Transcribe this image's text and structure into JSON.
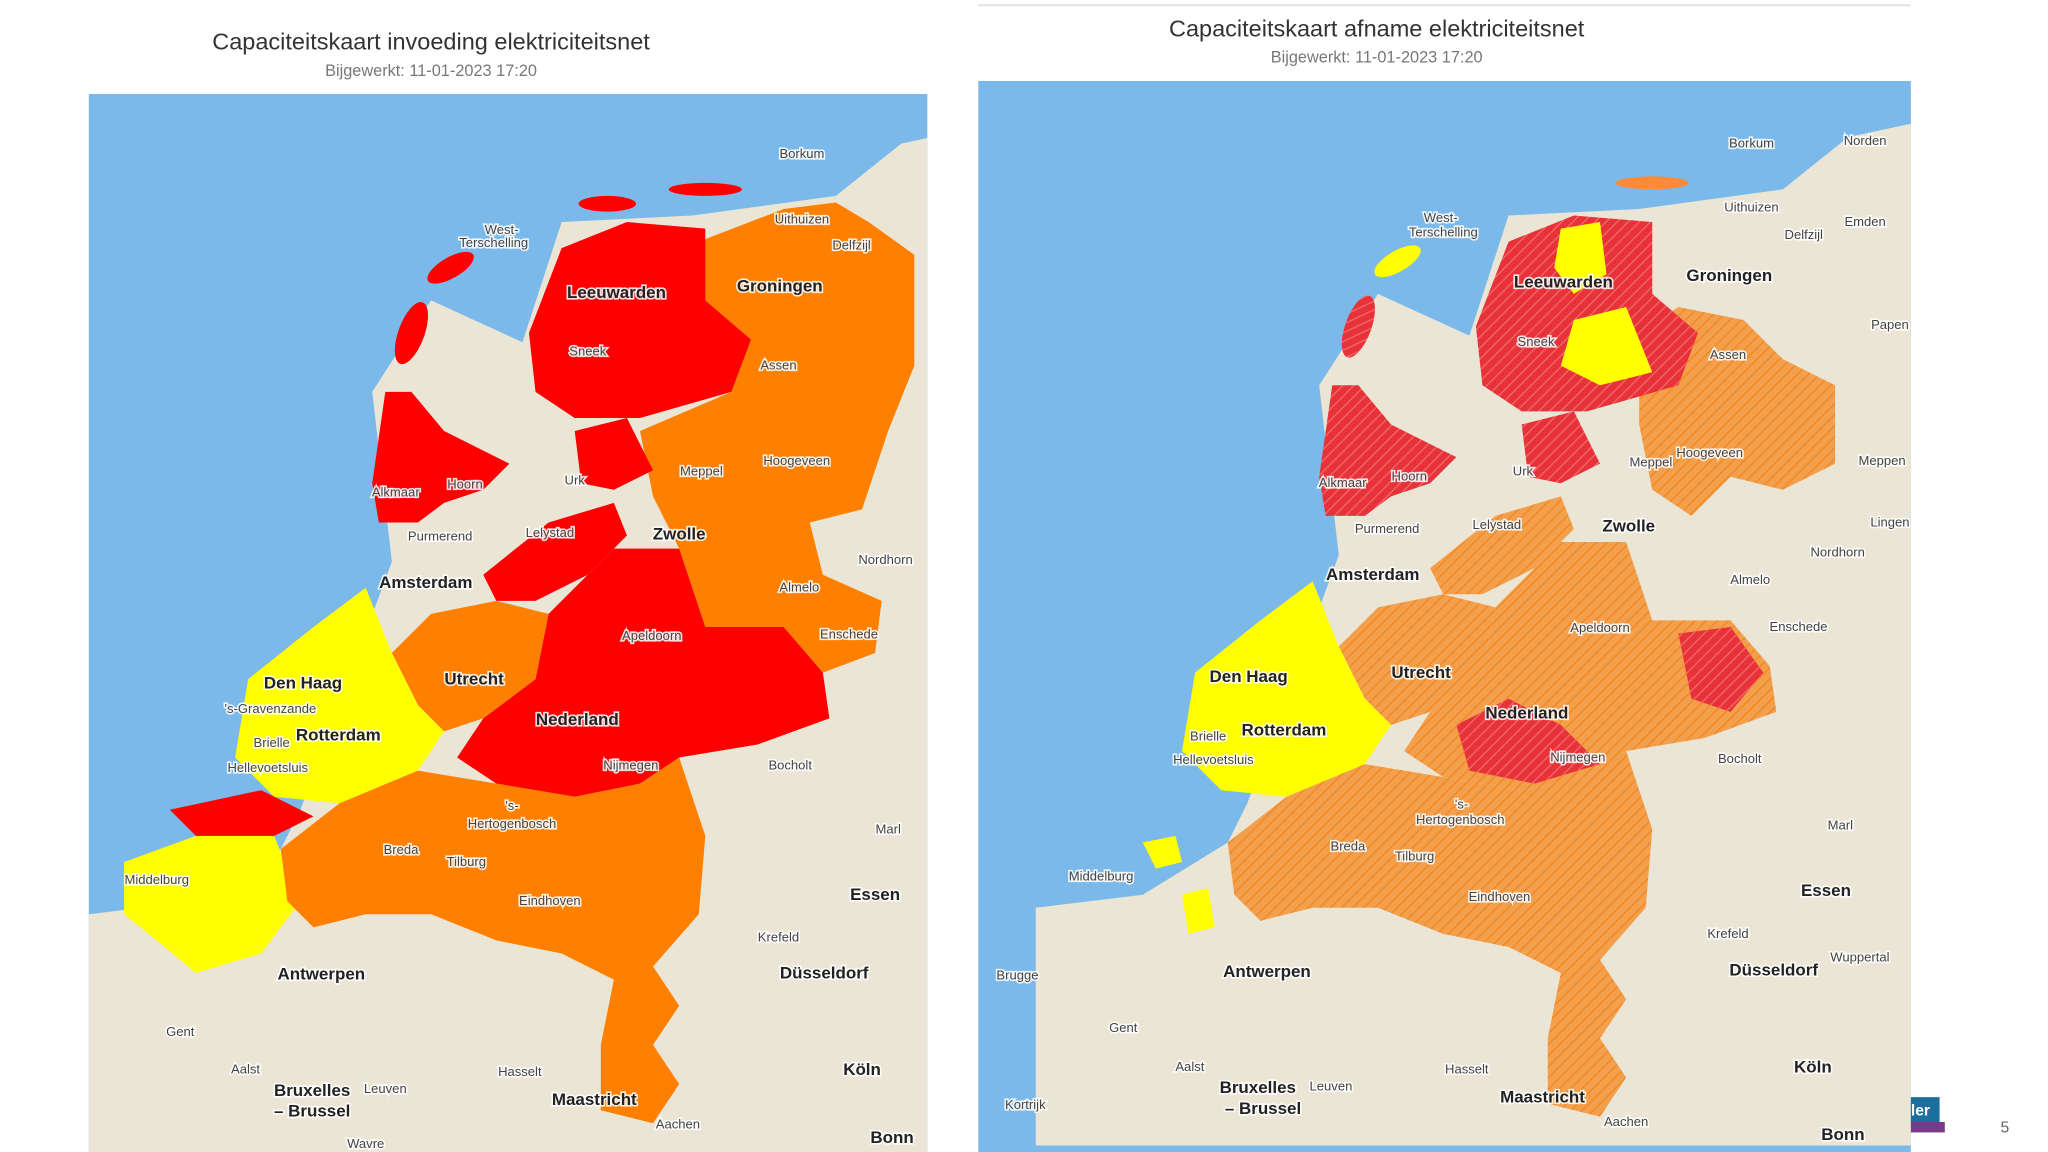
{
  "panels": [
    {
      "title": "Capaciteitskaart invoeding elektriciteitsnet",
      "subtitle": "Bijgewerkt: 11-01-2023 17:20",
      "places": [
        "Borkum",
        "Uithuizen",
        "Delfzijl",
        "West-",
        "Terschelling",
        "Leeuwarden",
        "Groningen",
        "Sneek",
        "Assen",
        "Alkmaar",
        "Hoorn",
        "Urk",
        "Meppel",
        "Hoogeveen",
        "Purmerend",
        "Lelystad",
        "Zwolle",
        "Amsterdam",
        "Nordhorn",
        "Almelo",
        "Den Haag",
        "Utrecht",
        "Apeldoorn",
        "Enschede",
        "'s-Gravenzande",
        "Rotterdam",
        "Nederland",
        "Brielle",
        "Hellevoetsluis",
        "Nijmegen",
        "Bocholt",
        "'s-",
        "Hertogenbosch",
        "Marl",
        "Breda",
        "Tilburg",
        "Middelburg",
        "Essen",
        "Eindhoven",
        "Krefeld",
        "Antwerpen",
        "Düsseldorf",
        "Gent",
        "Aalst",
        "Hasselt",
        "Köln",
        "Bruxelles",
        "– Brussel",
        "Leuven",
        "Maastricht",
        "Aachen",
        "Bonn",
        "Wavre"
      ]
    },
    {
      "title": "Capaciteitskaart afname elektriciteitsnet",
      "subtitle": "Bijgewerkt: 11-01-2023 17:20",
      "places": [
        "Borkum",
        "Norden",
        "West-",
        "Terschelling",
        "Uithuizen",
        "Delfzijl",
        "Emden",
        "Leeuwarden",
        "Groningen",
        "Sneek",
        "Assen",
        "Papen",
        "Alkmaar",
        "Hoorn",
        "Urk",
        "Meppel",
        "Hoogeveen",
        "Meppen",
        "Purmerend",
        "Lelystad",
        "Zwolle",
        "Lingen",
        "Amsterdam",
        "Nordhorn",
        "Almelo",
        "Den Haag",
        "Utrecht",
        "Apeldoorn",
        "Enschede",
        "Rotterdam",
        "Nederland",
        "Brielle",
        "Hellevoetsluis",
        "Nijmegen",
        "Bocholt",
        "'s-",
        "Hertogenbosch",
        "Marl",
        "Breda",
        "Tilburg",
        "Middelburg",
        "Essen",
        "Eindhoven",
        "Krefeld",
        "Wuppertal",
        "Brugge",
        "Antwerpen",
        "Düsseldorf",
        "Gent",
        "Aalst",
        "Hasselt",
        "Köln",
        "Kortrijk",
        "Bruxelles",
        "– Brussel",
        "Leuven",
        "Maastricht",
        "Aachen",
        "Bonn"
      ]
    }
  ],
  "logo": "ler",
  "page_number": "5"
}
